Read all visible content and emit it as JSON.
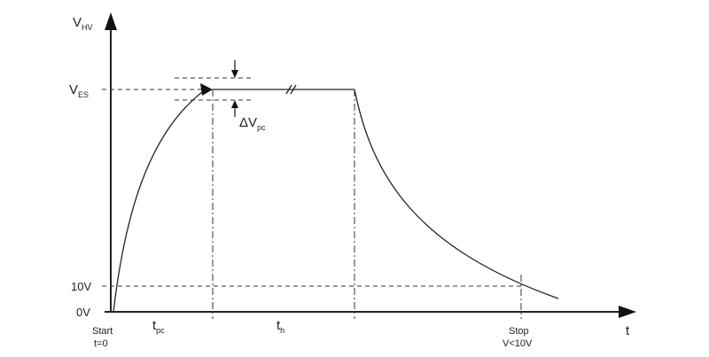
{
  "axes": {
    "y_label": {
      "main": "V",
      "sub": "HV"
    },
    "x_label": "t"
  },
  "levels": {
    "v_es": {
      "main": "V",
      "sub": "ES"
    },
    "ten_volt": "10V",
    "zero_volt": "0V"
  },
  "delta": {
    "main": "ΔV",
    "sub": "pc"
  },
  "intervals": {
    "t_pc": {
      "main": "t",
      "sub": "pc"
    },
    "t_h": {
      "main": "t",
      "sub": "h"
    }
  },
  "markers": {
    "start": [
      "Start",
      "t=0"
    ],
    "stop": [
      "Stop",
      "V<10V"
    ]
  }
}
